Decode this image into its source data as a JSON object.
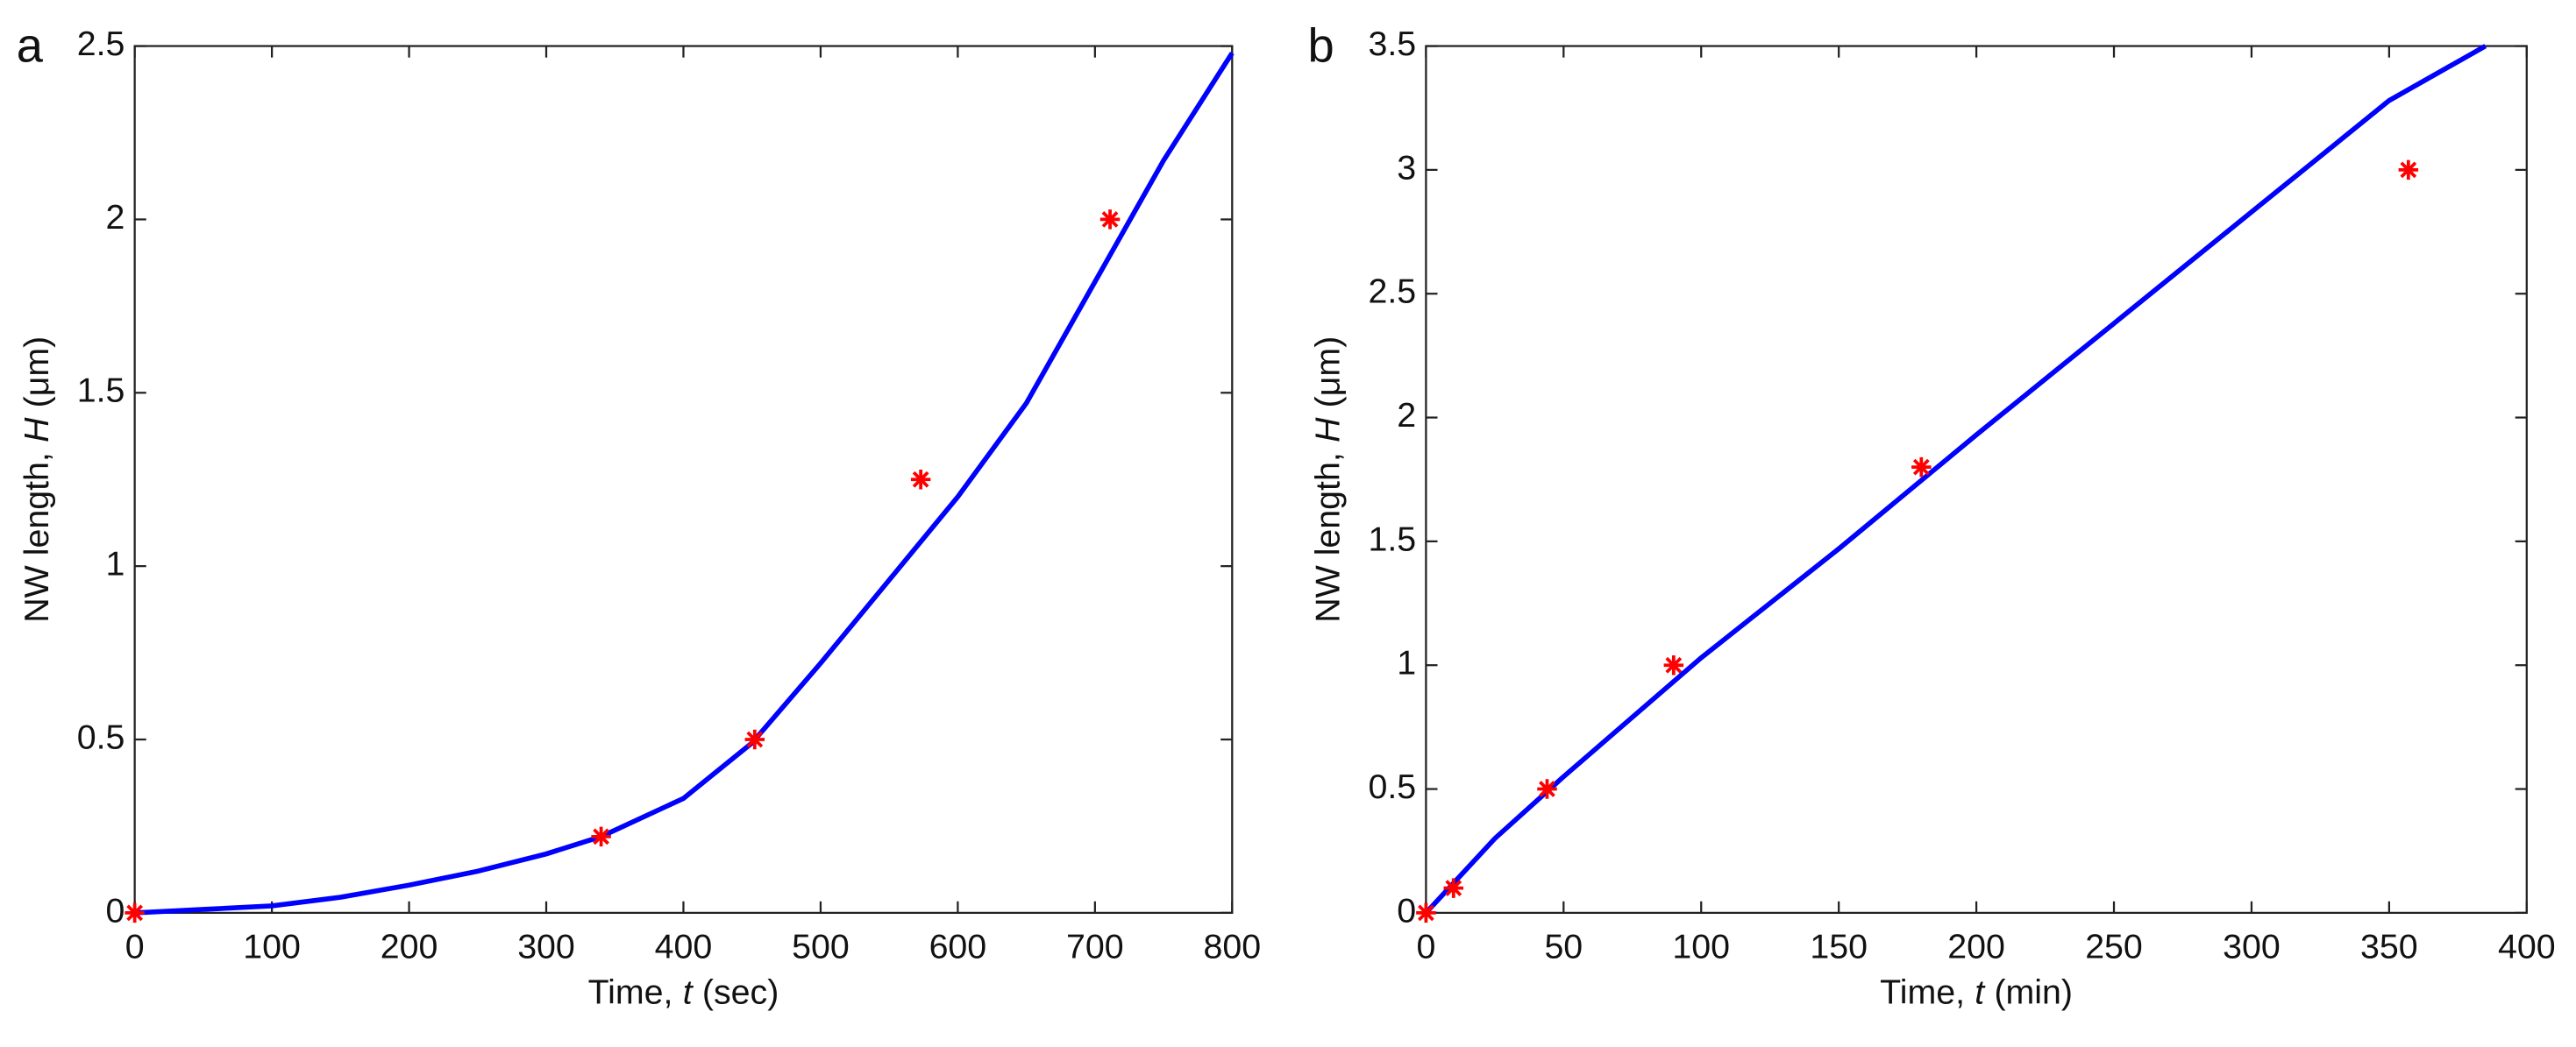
{
  "chart_data": [
    {
      "type": "line",
      "panel_label": "a",
      "xlabel": [
        "Time,",
        "t",
        "(sec)"
      ],
      "ylabel": [
        "NW length,",
        "H",
        "(μm)"
      ],
      "xlim": [
        0,
        800
      ],
      "ylim": [
        0,
        2.5
      ],
      "xticks": [
        0,
        100,
        200,
        300,
        400,
        500,
        600,
        700,
        800
      ],
      "yticks": [
        0,
        0.5,
        1,
        1.5,
        2,
        2.5
      ],
      "series": [
        {
          "mode": "line",
          "color": "#0000ff",
          "x": [
            0,
            50,
            100,
            150,
            200,
            250,
            300,
            340,
            400,
            450,
            500,
            550,
            600,
            650,
            700,
            750,
            800
          ],
          "values": [
            0,
            0.01,
            0.02,
            0.045,
            0.08,
            0.12,
            0.17,
            0.22,
            0.33,
            0.49,
            0.72,
            0.96,
            1.2,
            1.47,
            1.82,
            2.17,
            2.48
          ]
        },
        {
          "mode": "markers",
          "color": "#ff0000",
          "x": [
            0,
            340,
            452,
            573,
            711
          ],
          "values": [
            0,
            0.22,
            0.5,
            1.25,
            2.0
          ]
        }
      ]
    },
    {
      "type": "line",
      "panel_label": "b",
      "xlabel": [
        "Time,",
        "t",
        "(min)"
      ],
      "ylabel": [
        "NW length,",
        "H",
        "(μm)"
      ],
      "xlim": [
        0,
        400
      ],
      "ylim": [
        0,
        3.5
      ],
      "xticks": [
        0,
        50,
        100,
        150,
        200,
        250,
        300,
        350,
        400
      ],
      "yticks": [
        0,
        0.5,
        1,
        1.5,
        2,
        2.5,
        3,
        3.5
      ],
      "series": [
        {
          "mode": "line",
          "color": "#0000ff",
          "x": [
            0,
            10,
            25,
            50,
            100,
            150,
            200,
            250,
            300,
            350,
            385
          ],
          "values": [
            0,
            0.12,
            0.3,
            0.55,
            1.03,
            1.47,
            1.93,
            2.38,
            2.83,
            3.28,
            3.5
          ]
        },
        {
          "mode": "markers",
          "color": "#ff0000",
          "x": [
            0,
            10,
            44,
            90,
            180,
            357
          ],
          "values": [
            0,
            0.1,
            0.5,
            1.0,
            1.8,
            3.0
          ]
        }
      ]
    }
  ]
}
